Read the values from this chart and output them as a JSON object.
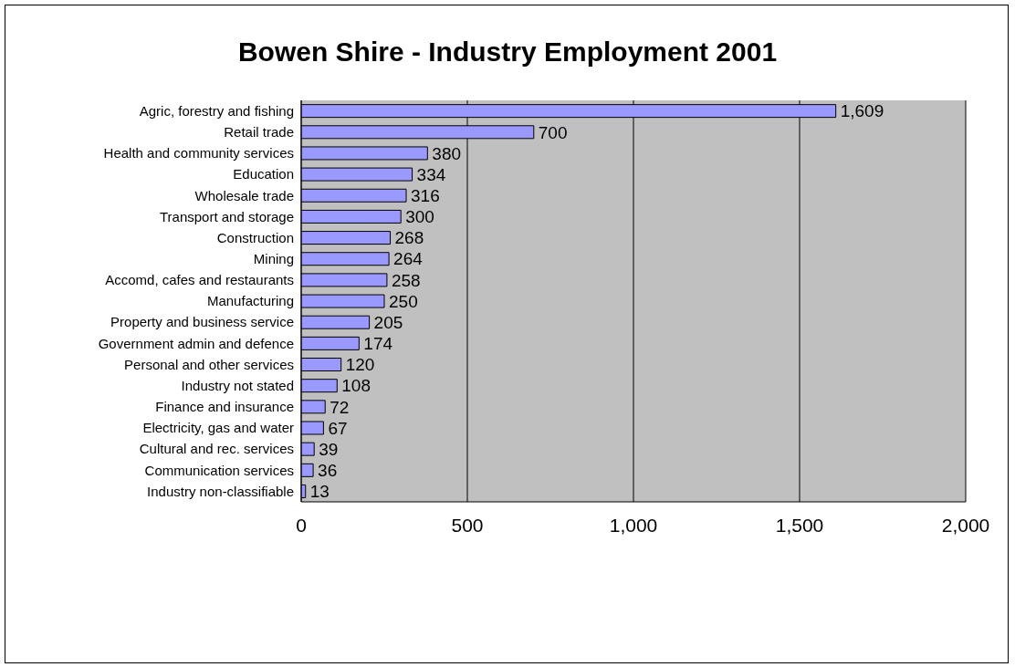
{
  "chart_data": {
    "type": "bar",
    "orientation": "horizontal",
    "title": "Bowen Shire - Industry Employment 2001",
    "categories": [
      "Agric, forestry and fishing",
      "Retail trade",
      "Health and community services",
      "Education",
      "Wholesale trade",
      "Transport and storage ",
      "Construction",
      "Mining",
      "Accomd, cafes and restaurants",
      "Manufacturing",
      "Property and business service",
      "Government admin and defence",
      "Personal and other services",
      "Industry not stated",
      "Finance and insurance ",
      "Electricity, gas and water",
      "Cultural and rec. services",
      "Communication services",
      "Industry non-classifiable"
    ],
    "values": [
      1609,
      700,
      380,
      334,
      316,
      300,
      268,
      264,
      258,
      250,
      205,
      174,
      120,
      108,
      72,
      67,
      39,
      36,
      13
    ],
    "value_labels": [
      "1,609",
      "700",
      "380",
      "334",
      "316",
      "300",
      "268",
      "264",
      "258",
      "250",
      "205",
      "174",
      "120",
      "108",
      "72",
      "67",
      "39",
      "36",
      "13"
    ],
    "color": "#9999ff",
    "grid": "x",
    "xlim": [
      0,
      2000
    ],
    "xticks": [
      0,
      500,
      {
        "value": 1000,
        "label": "1,000"
      },
      {
        "value": 1500,
        "label": "1,500"
      },
      {
        "value": 2000,
        "label": "2,000"
      }
    ]
  }
}
